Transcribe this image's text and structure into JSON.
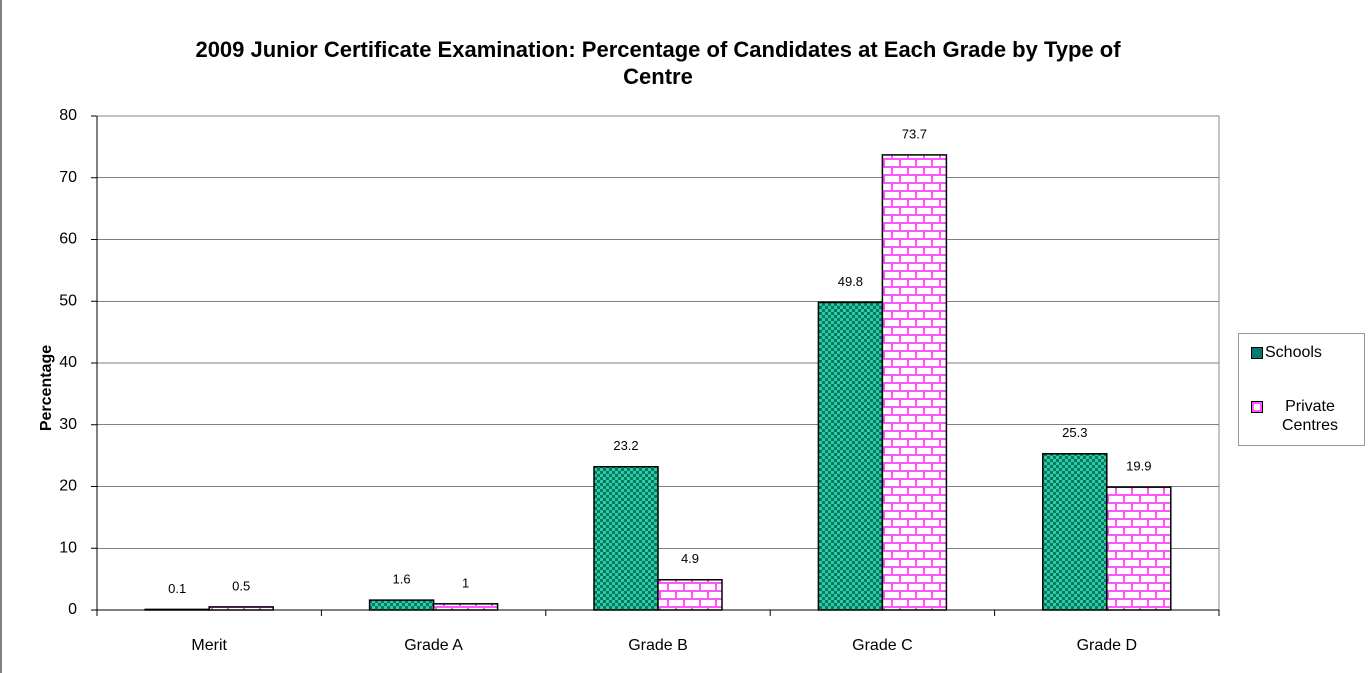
{
  "chart_data": {
    "type": "bar",
    "title": "2009 Junior Certificate Examination: Percentage of Candidates at Each Grade by Type of Centre",
    "y_label": "Percentage",
    "categories": [
      "Merit",
      "Grade A",
      "Grade B",
      "Grade C",
      "Grade D"
    ],
    "series": [
      {
        "name": "Schools",
        "color": "#007a6e",
        "values": [
          0.1,
          1.6,
          23.2,
          49.8,
          25.3
        ]
      },
      {
        "name": "Private Centres",
        "color": "#ff55ff",
        "values": [
          0.5,
          1,
          4.9,
          73.7,
          19.9
        ]
      }
    ],
    "ylim": [
      0,
      80
    ],
    "yticks": [
      0,
      10,
      20,
      30,
      40,
      50,
      60,
      70,
      80
    ],
    "grid": true,
    "legend": "right"
  }
}
